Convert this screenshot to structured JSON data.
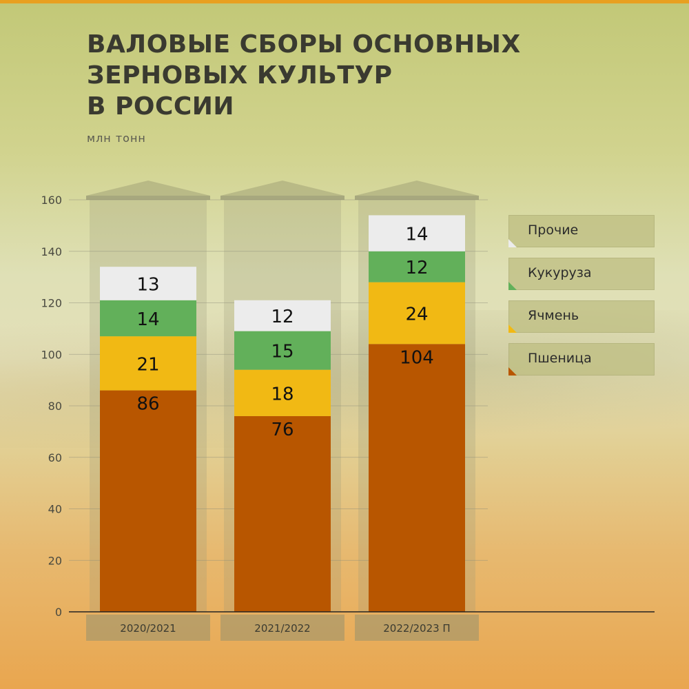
{
  "title_lines": [
    "ВАЛОВЫЕ СБОРЫ ОСНОВНЫХ",
    "ЗЕРНОВЫХ КУЛЬТУР",
    "В РОССИИ"
  ],
  "unit": "млн тонн",
  "colors": {
    "Пшеница": "#b85600",
    "Ячмень": "#f1b914",
    "Кукуруза": "#62b05a",
    "Прочие": "#ececec"
  },
  "legend": [
    {
      "label": "Прочие",
      "color": "#ececec"
    },
    {
      "label": "Кукуруза",
      "color": "#62b05a"
    },
    {
      "label": "Ячмень",
      "color": "#f1b914"
    },
    {
      "label": "Пшеница",
      "color": "#b85600"
    }
  ],
  "chart_data": {
    "type": "bar",
    "stacked": true,
    "categories": [
      "2020/2021",
      "2021/2022",
      "2022/2023 П"
    ],
    "series": [
      {
        "name": "Пшеница",
        "values": [
          86,
          76,
          104
        ]
      },
      {
        "name": "Ячмень",
        "values": [
          21,
          18,
          24
        ]
      },
      {
        "name": "Кукуруза",
        "values": [
          14,
          15,
          12
        ]
      },
      {
        "name": "Прочие",
        "values": [
          13,
          12,
          14
        ]
      }
    ],
    "y_ticks": [
      0,
      20,
      40,
      60,
      80,
      100,
      120,
      140,
      160
    ],
    "ylim": [
      0,
      160
    ],
    "grid": true,
    "legend_position": "right"
  }
}
